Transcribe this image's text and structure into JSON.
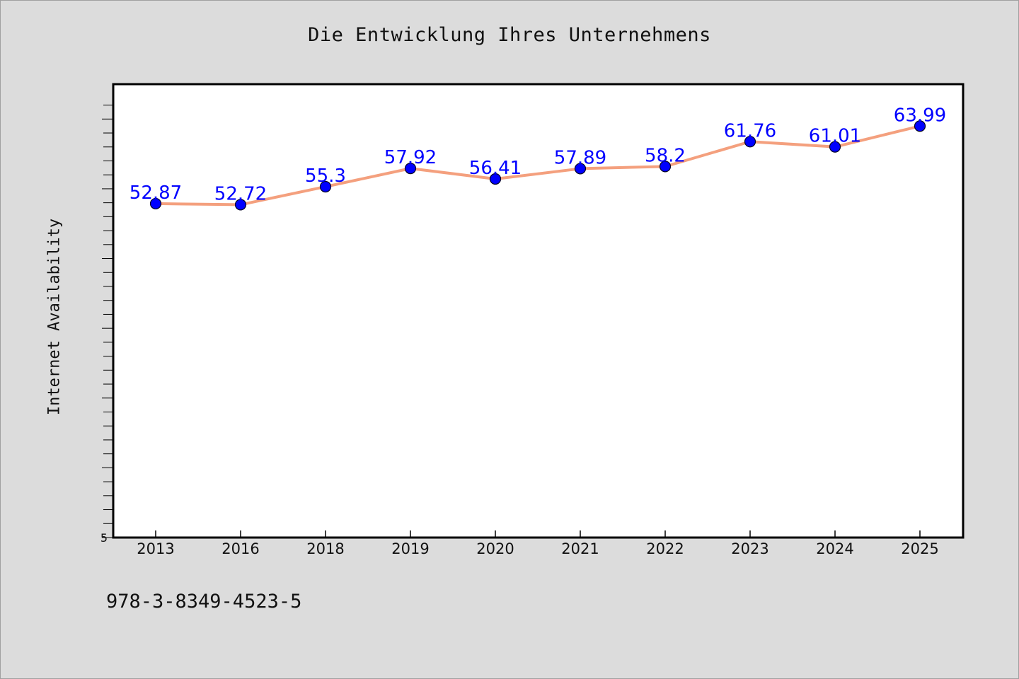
{
  "title": "Die Entwicklung Ihres Unternehmens",
  "footer_text": "978-3-8349-4523-5",
  "colors": {
    "background": "#dcdcdc",
    "plot_background": "#ffffff",
    "line": "#f4a07e",
    "marker": "#0000ff",
    "data_label": "#0000ff"
  },
  "chart_data": {
    "type": "line",
    "title": "Die Entwicklung Ihres Unternehmens",
    "xlabel": "",
    "ylabel": "Internet Availability",
    "categories": [
      "2013",
      "2016",
      "2018",
      "2019",
      "2020",
      "2021",
      "2022",
      "2023",
      "2024",
      "2025"
    ],
    "series": [
      {
        "values": [
          52.87,
          52.72,
          55.3,
          57.92,
          56.41,
          57.89,
          58.2,
          61.76,
          61.01,
          63.99
        ]
      }
    ],
    "data_labels": [
      "52.87",
      "52.72",
      "55.3",
      "57.92",
      "56.41",
      "57.89",
      "58.2",
      "61.76",
      "61.01",
      "63.99"
    ],
    "ylim": [
      5,
      70
    ],
    "ytick_labels": [
      "5"
    ],
    "grid": false,
    "legend": "none",
    "markers": "circle"
  }
}
